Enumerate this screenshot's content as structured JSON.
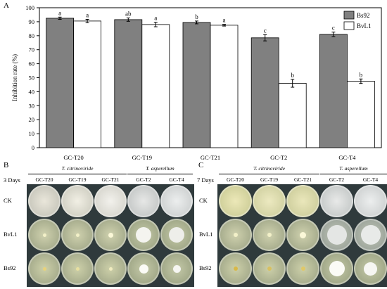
{
  "panel_labels": {
    "a": "A",
    "b": "B",
    "c": "C"
  },
  "chart_data": {
    "type": "bar",
    "ylabel": "Inhibition rate (%)",
    "ylim": [
      0,
      100
    ],
    "yticks": [
      0,
      10,
      20,
      30,
      40,
      50,
      60,
      70,
      80,
      90,
      100
    ],
    "categories": [
      "GC-T20",
      "GC-T19",
      "GC-T21",
      "GC-T2",
      "GC-T4"
    ],
    "series": [
      {
        "name": "Bs92",
        "color": "#808080",
        "values": [
          92.5,
          91.5,
          89.5,
          78.5,
          81
        ],
        "errors": [
          0.8,
          1.2,
          1.0,
          2.2,
          1.6
        ],
        "letters": [
          "a",
          "ab",
          "b",
          "c",
          "c"
        ]
      },
      {
        "name": "BvL1",
        "color": "#ffffff",
        "values": [
          90.5,
          88,
          87.5,
          46,
          47.5
        ],
        "errors": [
          1.2,
          1.6,
          0.6,
          2.8,
          1.6
        ],
        "letters": [
          "a",
          "a",
          "a",
          "b",
          "b"
        ]
      }
    ],
    "legend": "top-right"
  },
  "panel_b": {
    "days": "3 Days",
    "group1": "T. citrinoviride",
    "group2": "T. asperellum",
    "columns": [
      "GC-T20",
      "GC-T19",
      "GC-T21",
      "GC-T2",
      "GC-T4"
    ],
    "rows": [
      "CK",
      "BvL1",
      "Bs92"
    ]
  },
  "panel_c": {
    "days": "7 Days",
    "group1": "T. citrinoviride",
    "group2": "T. asperellum",
    "columns": [
      "GC-T20",
      "GC-T19",
      "GC-T21",
      "GC-T2",
      "GC-T4"
    ],
    "rows": [
      "CK",
      "BvL1",
      "Bs92"
    ]
  },
  "colors": {
    "bs92": "#808080",
    "bvl1": "#ffffff",
    "plate_bg": "#2f3a3c"
  }
}
